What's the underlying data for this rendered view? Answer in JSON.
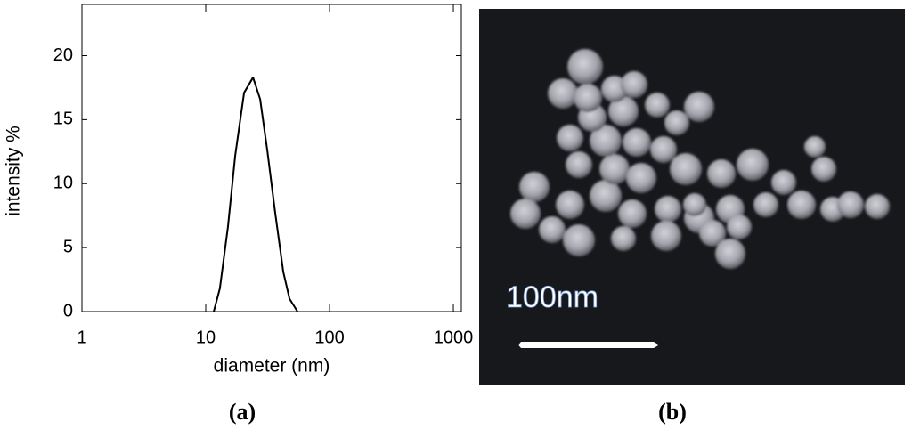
{
  "chart_data": {
    "type": "line",
    "x_label": "diameter (nm)",
    "y_label": "intensity %",
    "x": [
      11.6,
      13.0,
      15.1,
      17.3,
      20.4,
      24.1,
      27.5,
      31.4,
      36.4,
      42.3,
      47.5,
      55.1
    ],
    "series": [
      {
        "color": "#000000",
        "values": [
          0,
          1.8,
          6.6,
          12.2,
          17.1,
          18.3,
          16.6,
          12.6,
          7.7,
          3.1,
          1.0,
          0
        ]
      }
    ],
    "xscale": "log",
    "xlim": [
      1,
      1160
    ],
    "xticks": [
      1,
      10,
      100,
      1000
    ],
    "ylim": [
      0,
      24
    ],
    "yticks": [
      0,
      5,
      10,
      15,
      20
    ],
    "grid": false
  },
  "panel_labels": [
    "(a)",
    "(b)"
  ],
  "image": {
    "scale_label": "100nm"
  }
}
